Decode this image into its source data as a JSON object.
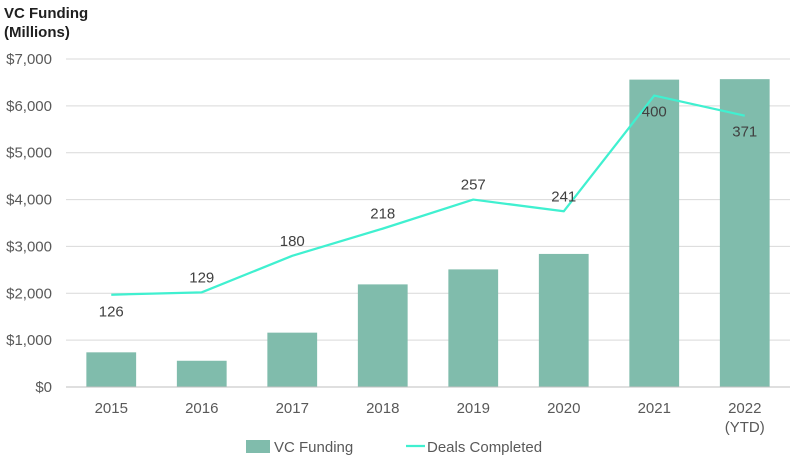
{
  "chart_data": {
    "type": "bar",
    "ylabel_lines": [
      "VC Funding",
      "(Millions)"
    ],
    "categories": [
      {
        "lines": [
          "2015"
        ]
      },
      {
        "lines": [
          "2016"
        ]
      },
      {
        "lines": [
          "2017"
        ]
      },
      {
        "lines": [
          "2018"
        ]
      },
      {
        "lines": [
          "2019"
        ]
      },
      {
        "lines": [
          "2020"
        ]
      },
      {
        "lines": [
          "2021"
        ]
      },
      {
        "lines": [
          "2022",
          "(YTD)"
        ]
      }
    ],
    "ylim": [
      0,
      7000
    ],
    "yticks": [
      0,
      1000,
      2000,
      3000,
      4000,
      5000,
      6000,
      7000
    ],
    "ytick_labels": [
      "$0",
      "$1,000",
      "$2,000",
      "$3,000",
      "$4,000",
      "$5,000",
      "$6,000",
      "$7,000"
    ],
    "series": [
      {
        "name": "VC Funding",
        "type": "bar",
        "color": "#80bcac",
        "values": [
          740,
          560,
          1160,
          2190,
          2510,
          2840,
          6560,
          6570
        ]
      },
      {
        "name": "Deals Completed",
        "type": "line",
        "color": "#40f0d0",
        "line_positions_usd": [
          1970,
          2020,
          2800,
          3380,
          4000,
          3750,
          6220,
          5790
        ],
        "data_labels": [
          "126",
          "129",
          "180",
          "218",
          "257",
          "241",
          "400",
          "371"
        ]
      }
    ],
    "legend": "bottom-center",
    "grid": "horizontal"
  }
}
